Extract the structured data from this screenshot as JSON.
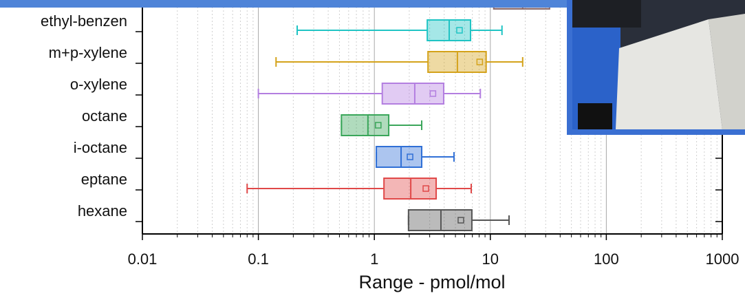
{
  "chart_data": {
    "type": "box",
    "orientation": "horizontal",
    "xlabel": "Range - pmol/mol",
    "xscale": "log",
    "xlim": [
      0.01,
      1000
    ],
    "xticks": [
      0.01,
      0.1,
      1,
      10,
      100,
      1000
    ],
    "grid": true,
    "categories": [
      null,
      "ethyl-benzen",
      "m+p-xylene",
      "o-xylene",
      "octane",
      "i-octane",
      "eptane",
      "hexane"
    ],
    "boxes": [
      {
        "min": null,
        "q1": 10.7,
        "median": 19,
        "q3": 32.4,
        "max": null,
        "mean": null,
        "color": "#8c6b6b"
      },
      {
        "min": 0.216,
        "q1": 2.86,
        "median": 4.42,
        "q3": 6.75,
        "max": 12.6,
        "mean": 5.42,
        "color": "#1fc4c4"
      },
      {
        "min": 0.142,
        "q1": 2.9,
        "median": 5.2,
        "q3": 9.2,
        "max": 19,
        "mean": 8.1,
        "color": "#d4a21a"
      },
      {
        "min": 0.1,
        "q1": 1.17,
        "median": 2.23,
        "q3": 3.96,
        "max": 8.2,
        "mean": 3.2,
        "color": "#b37ee0"
      },
      {
        "min": 0.52,
        "q1": 0.52,
        "median": 0.88,
        "q3": 1.33,
        "max": 2.56,
        "mean": 1.08,
        "color": "#3aa65a"
      },
      {
        "min": 1.04,
        "q1": 1.04,
        "median": 1.7,
        "q3": 2.56,
        "max": 4.86,
        "mean": 2.03,
        "color": "#2f6fd6"
      },
      {
        "min": 0.08,
        "q1": 1.21,
        "median": 2.06,
        "q3": 3.41,
        "max": 6.84,
        "mean": 2.78,
        "color": "#e04848"
      },
      {
        "min": 1.97,
        "q1": 1.97,
        "median": 3.75,
        "q3": 6.93,
        "max": 14.5,
        "mean": 5.57,
        "color": "#555555"
      }
    ]
  }
}
